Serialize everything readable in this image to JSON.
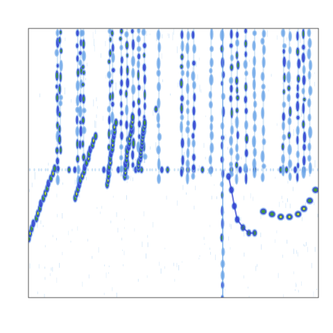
{
  "chart_data": {
    "type": "heatmap",
    "title": "",
    "xlabel": "",
    "ylabel": "",
    "grid": false,
    "legend": "none",
    "ticks": "none",
    "colors": {
      "background": "#ffffff",
      "frame": "#555555",
      "faint": "#b8d8f4",
      "light": "#6fa8e8",
      "mid": "#2f3fd0",
      "high": "#3f9a3a",
      "peak": "#e6d84a"
    },
    "description_features": {
      "vertical_streaks": [
        {
          "x": 0.1,
          "top": 0.0,
          "bottom": 0.55,
          "level": "mid"
        },
        {
          "x": 0.11,
          "top": 0.0,
          "bottom": 0.45,
          "level": "high"
        },
        {
          "x": 0.17,
          "top": 0.0,
          "bottom": 0.55,
          "level": "mid"
        },
        {
          "x": 0.18,
          "top": 0.0,
          "bottom": 0.45,
          "level": "mid"
        },
        {
          "x": 0.19,
          "top": 0.0,
          "bottom": 0.5,
          "level": "high"
        },
        {
          "x": 0.28,
          "top": 0.0,
          "bottom": 0.55,
          "level": "high"
        },
        {
          "x": 0.29,
          "top": 0.0,
          "bottom": 0.4,
          "level": "mid"
        },
        {
          "x": 0.32,
          "top": 0.0,
          "bottom": 0.55,
          "level": "mid"
        },
        {
          "x": 0.34,
          "top": 0.0,
          "bottom": 0.55,
          "level": "high"
        },
        {
          "x": 0.36,
          "top": 0.0,
          "bottom": 0.5,
          "level": "mid"
        },
        {
          "x": 0.38,
          "top": 0.0,
          "bottom": 0.45,
          "level": "mid"
        },
        {
          "x": 0.4,
          "top": 0.0,
          "bottom": 0.5,
          "level": "mid"
        },
        {
          "x": 0.45,
          "top": 0.0,
          "bottom": 0.55,
          "level": "light"
        },
        {
          "x": 0.53,
          "top": 0.0,
          "bottom": 0.55,
          "level": "mid"
        },
        {
          "x": 0.55,
          "top": 0.0,
          "bottom": 0.55,
          "level": "light"
        },
        {
          "x": 0.57,
          "top": 0.0,
          "bottom": 0.55,
          "level": "mid"
        },
        {
          "x": 0.63,
          "top": 0.0,
          "bottom": 0.55,
          "level": "light"
        },
        {
          "x": 0.67,
          "top": 0.0,
          "bottom": 1.0,
          "level": "mid"
        },
        {
          "x": 0.7,
          "top": 0.0,
          "bottom": 0.55,
          "level": "mid"
        },
        {
          "x": 0.72,
          "top": 0.0,
          "bottom": 0.55,
          "level": "high"
        },
        {
          "x": 0.75,
          "top": 0.0,
          "bottom": 0.55,
          "level": "mid"
        },
        {
          "x": 0.78,
          "top": 0.0,
          "bottom": 0.55,
          "level": "light"
        },
        {
          "x": 0.81,
          "top": 0.0,
          "bottom": 0.55,
          "level": "light"
        },
        {
          "x": 0.88,
          "top": 0.0,
          "bottom": 0.55,
          "level": "mid"
        },
        {
          "x": 0.9,
          "top": 0.0,
          "bottom": 0.55,
          "level": "high"
        },
        {
          "x": 0.93,
          "top": 0.0,
          "bottom": 0.55,
          "level": "mid"
        },
        {
          "x": 0.95,
          "top": 0.0,
          "bottom": 0.55,
          "level": "mid"
        },
        {
          "x": 0.97,
          "top": 0.0,
          "bottom": 0.55,
          "level": "light"
        }
      ],
      "diagonal_bands": [
        {
          "x0": 0.0,
          "y0": 0.78,
          "x1": 0.09,
          "y1": 0.52
        },
        {
          "x0": 0.16,
          "y0": 0.63,
          "x1": 0.23,
          "y1": 0.4
        },
        {
          "x0": 0.27,
          "y0": 0.58,
          "x1": 0.3,
          "y1": 0.35
        },
        {
          "x0": 0.33,
          "y0": 0.55,
          "x1": 0.36,
          "y1": 0.33
        },
        {
          "x0": 0.38,
          "y0": 0.52,
          "x1": 0.4,
          "y1": 0.35
        }
      ],
      "horizontal_line_y": 0.525,
      "curve_points": [
        [
          0.69,
          0.55
        ],
        [
          0.7,
          0.6
        ],
        [
          0.71,
          0.66
        ],
        [
          0.72,
          0.71
        ],
        [
          0.74,
          0.74
        ],
        [
          0.76,
          0.76
        ],
        [
          0.78,
          0.76
        ]
      ],
      "arc_points": [
        [
          0.81,
          0.68
        ],
        [
          0.84,
          0.69
        ],
        [
          0.87,
          0.7
        ],
        [
          0.9,
          0.7
        ],
        [
          0.93,
          0.69
        ],
        [
          0.95,
          0.67
        ],
        [
          0.97,
          0.64
        ],
        [
          0.99,
          0.6
        ]
      ],
      "spot": {
        "x": 0.44,
        "y": 0.3
      }
    }
  }
}
